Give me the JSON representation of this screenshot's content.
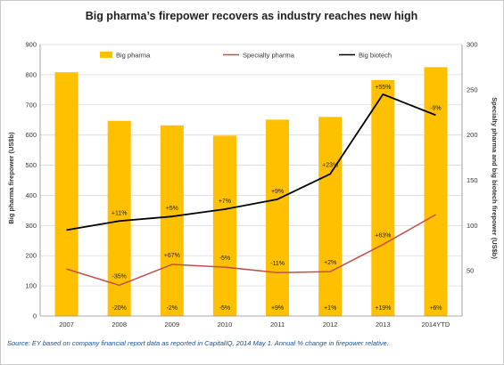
{
  "chart_data": {
    "type": "bar",
    "title": "Big pharma’s firepower recovers as industry reaches new high",
    "categories": [
      "2007",
      "2008",
      "2009",
      "2010",
      "2011",
      "2012",
      "2013",
      "2014YTD"
    ],
    "left_axis": {
      "label": "Big pharma firepower (US$b)",
      "ylim": [
        0,
        900
      ],
      "ticks": [
        "0",
        "100",
        "200",
        "300",
        "400",
        "500",
        "600",
        "700",
        "800",
        "900"
      ]
    },
    "right_axis": {
      "label": "Specialty pharma and big biotech firepower (US$b)",
      "ylim": [
        0,
        300
      ],
      "ticks": [
        "50",
        "100",
        "150",
        "200",
        "250",
        "300"
      ]
    },
    "series": [
      {
        "name": "Big pharma",
        "type": "bar",
        "axis": "left",
        "color": "#ffc000",
        "values": [
          808,
          647,
          632,
          598,
          651,
          660,
          782,
          825
        ],
        "pct_labels": [
          "",
          "-20%",
          "-2%",
          "-5%",
          "+9%",
          "+1%",
          "+19%",
          "+6%"
        ]
      },
      {
        "name": "Specialty pharma",
        "type": "line",
        "axis": "right",
        "color": "#c0504d",
        "values": [
          52,
          34,
          57,
          54,
          48,
          49,
          79,
          112
        ],
        "pct_labels": [
          "",
          "-35%",
          "+67%",
          "-5%",
          "-11%",
          "+2%",
          "+63%",
          ""
        ]
      },
      {
        "name": "Big biotech",
        "type": "line",
        "axis": "right",
        "color": "#000000",
        "values": [
          95,
          105,
          110,
          118,
          129,
          157,
          245,
          222
        ],
        "pct_labels": [
          "",
          "+11%",
          "+5%",
          "+7%",
          "+9%",
          "+23%",
          "+55%",
          "-9%"
        ]
      }
    ],
    "legend_position": "top",
    "grid": true
  },
  "source_note": "Source: EY based on company financial report data as reported in CapitalIQ,  2014  May 1.  Annual %  change in firepower relative."
}
